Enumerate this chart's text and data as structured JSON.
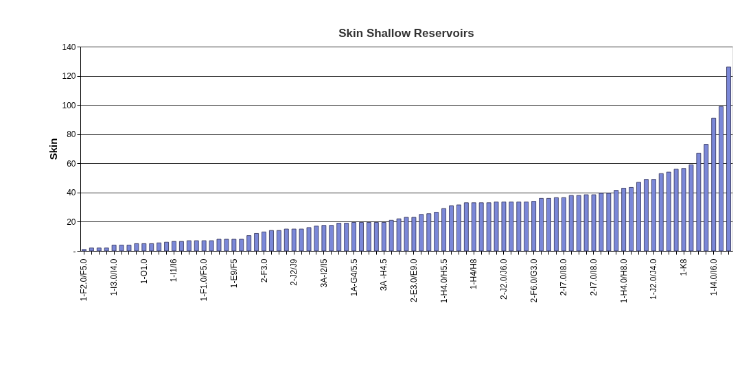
{
  "chart_data": {
    "type": "bar",
    "title": "Skin Shallow Reservoirs",
    "ylabel": "Skin",
    "categories": [
      "1-F2.0/F5.0",
      null,
      null,
      null,
      "1-I3.0/I4.0",
      null,
      null,
      null,
      "1-O1.0",
      null,
      null,
      null,
      "1-I1/I6",
      null,
      null,
      null,
      "1-F1.0/F5.0",
      null,
      null,
      null,
      "1-E9/F5",
      null,
      null,
      null,
      "2-F3.0",
      null,
      null,
      null,
      "2-J2/J9",
      null,
      null,
      null,
      "3A-I2/I5",
      null,
      null,
      null,
      "1A-G4/5.5",
      null,
      null,
      null,
      "3A -H4.5",
      null,
      null,
      null,
      "2-E3.0/E9.0",
      null,
      null,
      null,
      "1-H4.0/H5.5",
      null,
      null,
      null,
      "1-H4/H8",
      null,
      null,
      null,
      "2-J2.0/J6.0",
      null,
      null,
      null,
      "2-F6.0/G3.0",
      null,
      null,
      null,
      "2-I7.0/I8.0",
      null,
      null,
      null,
      "2-I7.0/I8.0",
      null,
      null,
      null,
      "1-H4.0/H8.0",
      null,
      null,
      null,
      "1-J2.0/J4.0",
      null,
      null,
      null,
      "1-K8",
      null,
      null,
      null,
      "1-I4.0/I6.0",
      null,
      null
    ],
    "values": [
      1,
      2,
      2,
      2,
      4,
      4,
      4,
      5,
      5,
      5,
      5.5,
      6,
      6.5,
      6.5,
      7,
      7,
      7,
      7,
      8,
      8,
      8,
      8,
      10.5,
      12,
      13,
      14,
      14,
      15,
      15,
      15,
      16,
      17,
      17.5,
      17.5,
      19,
      19,
      19.5,
      19.5,
      19.5,
      19.5,
      19.5,
      21,
      22,
      23,
      23,
      25,
      25.5,
      26.5,
      29,
      31,
      31.5,
      33,
      33,
      33,
      33,
      33.5,
      33.5,
      33.5,
      33.5,
      33.5,
      34,
      36,
      36,
      36.5,
      36.5,
      38,
      38,
      38.5,
      38.5,
      39.5,
      39.5,
      41.5,
      43,
      43.5,
      47,
      49,
      49,
      53,
      54,
      56,
      56.5,
      59,
      67,
      73,
      91,
      99,
      126
    ],
    "color": "#7b88d8",
    "ylim": [
      0,
      140
    ],
    "yticks": [
      {
        "value": 0,
        "label": "-"
      },
      20,
      40,
      60,
      80,
      100,
      120,
      140
    ],
    "grid": "y"
  }
}
